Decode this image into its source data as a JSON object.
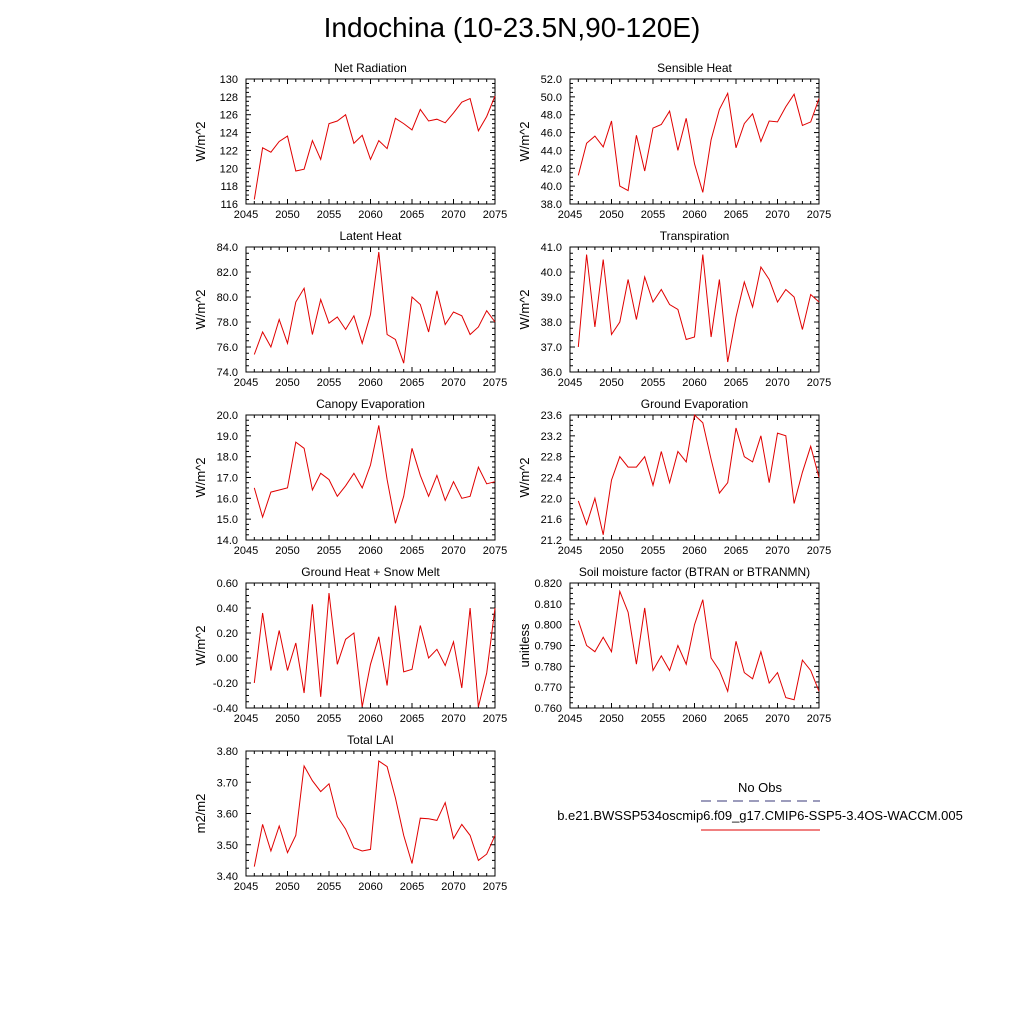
{
  "title": "Indochina (10-23.5N,90-120E)",
  "legend": {
    "obs_label": "No Obs",
    "model_label": "b.e21.BWSSP534oscmip6.f09_g17.CMIP6-SSP5-3.4OS-WACCM.005",
    "obs_color": "#3a3a7a",
    "model_color": "#e00000"
  },
  "series_color": "#e00000",
  "chart_data": [
    {
      "type": "line",
      "title": "Net Radiation",
      "ylabel": "W/m^2",
      "xlim": [
        2045,
        2075
      ],
      "ylim": [
        116,
        130
      ],
      "xticks": [
        2045,
        2050,
        2055,
        2060,
        2065,
        2070,
        2075
      ],
      "xtick_labels": [
        "2045",
        "2050",
        "2055",
        "2060",
        "2065",
        "2070",
        "2075"
      ],
      "yticks": [
        116,
        118,
        120,
        122,
        124,
        126,
        128,
        130
      ],
      "ytick_labels": [
        "116",
        "118",
        "120",
        "122",
        "124",
        "126",
        "128",
        "130"
      ],
      "x": [
        2046,
        2047,
        2048,
        2049,
        2050,
        2051,
        2052,
        2053,
        2054,
        2055,
        2056,
        2057,
        2058,
        2059,
        2060,
        2061,
        2062,
        2063,
        2064,
        2065,
        2066,
        2067,
        2068,
        2069,
        2070,
        2071,
        2072,
        2073,
        2074,
        2075
      ],
      "values": [
        116.5,
        122.3,
        121.8,
        123.0,
        123.6,
        119.7,
        119.9,
        123.1,
        121.0,
        125.0,
        125.3,
        126.0,
        122.8,
        123.7,
        121.0,
        123.1,
        122.2,
        125.6,
        125.0,
        124.3,
        126.6,
        125.3,
        125.5,
        125.1,
        126.2,
        127.4,
        127.8,
        124.2,
        125.8,
        128.1
      ]
    },
    {
      "type": "line",
      "title": "Sensible Heat",
      "ylabel": "W/m^2",
      "xlim": [
        2045,
        2075
      ],
      "ylim": [
        38,
        52
      ],
      "xticks": [
        2045,
        2050,
        2055,
        2060,
        2065,
        2070,
        2075
      ],
      "xtick_labels": [
        "2045",
        "2050",
        "2055",
        "2060",
        "2065",
        "2070",
        "2075"
      ],
      "yticks": [
        38,
        40,
        42,
        44,
        46,
        48,
        50,
        52
      ],
      "ytick_labels": [
        "38.0",
        "40.0",
        "42.0",
        "44.0",
        "46.0",
        "48.0",
        "50.0",
        "52.0"
      ],
      "x": [
        2046,
        2047,
        2048,
        2049,
        2050,
        2051,
        2052,
        2053,
        2054,
        2055,
        2056,
        2057,
        2058,
        2059,
        2060,
        2061,
        2062,
        2063,
        2064,
        2065,
        2066,
        2067,
        2068,
        2069,
        2070,
        2071,
        2072,
        2073,
        2074,
        2075
      ],
      "values": [
        41.2,
        44.8,
        45.6,
        44.4,
        47.3,
        40.0,
        39.5,
        45.7,
        41.7,
        46.5,
        46.9,
        48.4,
        44.0,
        47.6,
        42.5,
        39.3,
        45.2,
        48.6,
        50.4,
        44.3,
        47.0,
        48.1,
        45.0,
        47.3,
        47.2,
        48.9,
        50.3,
        46.8,
        47.2,
        49.8
      ]
    },
    {
      "type": "line",
      "title": "Latent Heat",
      "ylabel": "W/m^2",
      "xlim": [
        2045,
        2075
      ],
      "ylim": [
        74,
        84
      ],
      "xticks": [
        2045,
        2050,
        2055,
        2060,
        2065,
        2070,
        2075
      ],
      "xtick_labels": [
        "2045",
        "2050",
        "2055",
        "2060",
        "2065",
        "2070",
        "2075"
      ],
      "yticks": [
        74,
        76,
        78,
        80,
        82,
        84
      ],
      "ytick_labels": [
        "74.0",
        "76.0",
        "78.0",
        "80.0",
        "82.0",
        "84.0"
      ],
      "x": [
        2046,
        2047,
        2048,
        2049,
        2050,
        2051,
        2052,
        2053,
        2054,
        2055,
        2056,
        2057,
        2058,
        2059,
        2060,
        2061,
        2062,
        2063,
        2064,
        2065,
        2066,
        2067,
        2068,
        2069,
        2070,
        2071,
        2072,
        2073,
        2074,
        2075
      ],
      "values": [
        75.4,
        77.2,
        76.0,
        78.2,
        76.3,
        79.6,
        80.7,
        77.0,
        79.8,
        77.9,
        78.4,
        77.4,
        78.5,
        76.3,
        78.6,
        83.6,
        77.0,
        76.6,
        74.7,
        80.0,
        79.4,
        77.2,
        80.5,
        77.8,
        78.8,
        78.5,
        77.0,
        77.6,
        78.9,
        78.0
      ]
    },
    {
      "type": "line",
      "title": "Transpiration",
      "ylabel": "W/m^2",
      "xlim": [
        2045,
        2075
      ],
      "ylim": [
        36,
        41
      ],
      "xticks": [
        2045,
        2050,
        2055,
        2060,
        2065,
        2070,
        2075
      ],
      "xtick_labels": [
        "2045",
        "2050",
        "2055",
        "2060",
        "2065",
        "2070",
        "2075"
      ],
      "yticks": [
        36,
        37,
        38,
        39,
        40,
        41
      ],
      "ytick_labels": [
        "36.0",
        "37.0",
        "38.0",
        "39.0",
        "40.0",
        "41.0"
      ],
      "x": [
        2046,
        2047,
        2048,
        2049,
        2050,
        2051,
        2052,
        2053,
        2054,
        2055,
        2056,
        2057,
        2058,
        2059,
        2060,
        2061,
        2062,
        2063,
        2064,
        2065,
        2066,
        2067,
        2068,
        2069,
        2070,
        2071,
        2072,
        2073,
        2074,
        2075
      ],
      "values": [
        37.0,
        40.7,
        37.8,
        40.5,
        37.5,
        38.0,
        39.7,
        38.1,
        39.8,
        38.8,
        39.3,
        38.7,
        38.5,
        37.3,
        37.4,
        40.7,
        37.4,
        39.7,
        36.4,
        38.2,
        39.6,
        38.6,
        40.2,
        39.7,
        38.8,
        39.3,
        39.0,
        37.7,
        39.1,
        38.8
      ]
    },
    {
      "type": "line",
      "title": "Canopy Evaporation",
      "ylabel": "W/m^2",
      "xlim": [
        2045,
        2075
      ],
      "ylim": [
        14,
        20
      ],
      "xticks": [
        2045,
        2050,
        2055,
        2060,
        2065,
        2070,
        2075
      ],
      "xtick_labels": [
        "2045",
        "2050",
        "2055",
        "2060",
        "2065",
        "2070",
        "2075"
      ],
      "yticks": [
        14,
        15,
        16,
        17,
        18,
        19,
        20
      ],
      "ytick_labels": [
        "14.0",
        "15.0",
        "16.0",
        "17.0",
        "18.0",
        "19.0",
        "20.0"
      ],
      "x": [
        2046,
        2047,
        2048,
        2049,
        2050,
        2051,
        2052,
        2053,
        2054,
        2055,
        2056,
        2057,
        2058,
        2059,
        2060,
        2061,
        2062,
        2063,
        2064,
        2065,
        2066,
        2067,
        2068,
        2069,
        2070,
        2071,
        2072,
        2073,
        2074,
        2075
      ],
      "values": [
        16.5,
        15.1,
        16.3,
        16.4,
        16.5,
        18.7,
        18.4,
        16.4,
        17.2,
        16.9,
        16.1,
        16.6,
        17.2,
        16.5,
        17.6,
        19.5,
        16.9,
        14.8,
        16.1,
        18.4,
        17.1,
        16.1,
        17.1,
        15.9,
        16.8,
        16.0,
        16.1,
        17.5,
        16.7,
        16.8
      ]
    },
    {
      "type": "line",
      "title": "Ground Evaporation",
      "ylabel": "W/m^2",
      "xlim": [
        2045,
        2075
      ],
      "ylim": [
        21.2,
        23.6
      ],
      "xticks": [
        2045,
        2050,
        2055,
        2060,
        2065,
        2070,
        2075
      ],
      "xtick_labels": [
        "2045",
        "2050",
        "2055",
        "2060",
        "2065",
        "2070",
        "2075"
      ],
      "yticks": [
        21.2,
        21.6,
        22.0,
        22.4,
        22.8,
        23.2,
        23.6
      ],
      "ytick_labels": [
        "21.2",
        "21.6",
        "22.0",
        "22.4",
        "22.8",
        "23.2",
        "23.6"
      ],
      "x": [
        2046,
        2047,
        2048,
        2049,
        2050,
        2051,
        2052,
        2053,
        2054,
        2055,
        2056,
        2057,
        2058,
        2059,
        2060,
        2061,
        2062,
        2063,
        2064,
        2065,
        2066,
        2067,
        2068,
        2069,
        2070,
        2071,
        2072,
        2073,
        2074,
        2075
      ],
      "values": [
        21.95,
        21.5,
        22.0,
        21.3,
        22.35,
        22.8,
        22.6,
        22.6,
        22.8,
        22.25,
        22.9,
        22.3,
        22.9,
        22.7,
        23.6,
        23.45,
        22.75,
        22.1,
        22.3,
        23.35,
        22.8,
        22.7,
        23.2,
        22.3,
        23.25,
        23.2,
        21.9,
        22.5,
        23.0,
        22.4
      ]
    },
    {
      "type": "line",
      "title": "Ground Heat + Snow Melt",
      "ylabel": "W/m^2",
      "xlim": [
        2045,
        2075
      ],
      "ylim": [
        -0.4,
        0.6
      ],
      "xticks": [
        2045,
        2050,
        2055,
        2060,
        2065,
        2070,
        2075
      ],
      "xtick_labels": [
        "2045",
        "2050",
        "2055",
        "2060",
        "2065",
        "2070",
        "2075"
      ],
      "yticks": [
        -0.4,
        -0.2,
        0.0,
        0.2,
        0.4,
        0.6
      ],
      "ytick_labels": [
        "-0.40",
        "-0.20",
        "0.00",
        "0.20",
        "0.40",
        "0.60"
      ],
      "x": [
        2046,
        2047,
        2048,
        2049,
        2050,
        2051,
        2052,
        2053,
        2054,
        2055,
        2056,
        2057,
        2058,
        2059,
        2060,
        2061,
        2062,
        2063,
        2064,
        2065,
        2066,
        2067,
        2068,
        2069,
        2070,
        2071,
        2072,
        2073,
        2074,
        2075
      ],
      "values": [
        -0.2,
        0.36,
        -0.1,
        0.22,
        -0.1,
        0.12,
        -0.28,
        0.43,
        -0.31,
        0.52,
        -0.05,
        0.15,
        0.2,
        -0.39,
        -0.05,
        0.17,
        -0.22,
        0.42,
        -0.11,
        -0.09,
        0.26,
        0.0,
        0.07,
        -0.06,
        0.13,
        -0.24,
        0.4,
        -0.39,
        -0.12,
        0.4
      ]
    },
    {
      "type": "line",
      "title": "Soil moisture factor (BTRAN or BTRANMN)",
      "ylabel": "unitless",
      "xlim": [
        2045,
        2075
      ],
      "ylim": [
        0.76,
        0.82
      ],
      "xticks": [
        2045,
        2050,
        2055,
        2060,
        2065,
        2070,
        2075
      ],
      "xtick_labels": [
        "2045",
        "2050",
        "2055",
        "2060",
        "2065",
        "2070",
        "2075"
      ],
      "yticks": [
        0.76,
        0.77,
        0.78,
        0.79,
        0.8,
        0.81,
        0.82
      ],
      "ytick_labels": [
        "0.760",
        "0.770",
        "0.780",
        "0.790",
        "0.800",
        "0.810",
        "0.820"
      ],
      "x": [
        2046,
        2047,
        2048,
        2049,
        2050,
        2051,
        2052,
        2053,
        2054,
        2055,
        2056,
        2057,
        2058,
        2059,
        2060,
        2061,
        2062,
        2063,
        2064,
        2065,
        2066,
        2067,
        2068,
        2069,
        2070,
        2071,
        2072,
        2073,
        2074,
        2075
      ],
      "values": [
        0.802,
        0.79,
        0.787,
        0.794,
        0.787,
        0.816,
        0.806,
        0.781,
        0.808,
        0.778,
        0.785,
        0.778,
        0.79,
        0.781,
        0.8,
        0.812,
        0.784,
        0.778,
        0.768,
        0.792,
        0.777,
        0.774,
        0.787,
        0.772,
        0.777,
        0.765,
        0.764,
        0.783,
        0.778,
        0.768
      ]
    },
    {
      "type": "line",
      "title": "Total LAI",
      "ylabel": "m2/m2",
      "xlim": [
        2045,
        2075
      ],
      "ylim": [
        3.4,
        3.8
      ],
      "xticks": [
        2045,
        2050,
        2055,
        2060,
        2065,
        2070,
        2075
      ],
      "xtick_labels": [
        "2045",
        "2050",
        "2055",
        "2060",
        "2065",
        "2070",
        "2075"
      ],
      "yticks": [
        3.4,
        3.5,
        3.6,
        3.7,
        3.8
      ],
      "ytick_labels": [
        "3.40",
        "3.50",
        "3.60",
        "3.70",
        "3.80"
      ],
      "x": [
        2046,
        2047,
        2048,
        2049,
        2050,
        2051,
        2052,
        2053,
        2054,
        2055,
        2056,
        2057,
        2058,
        2059,
        2060,
        2061,
        2062,
        2063,
        2064,
        2065,
        2066,
        2067,
        2068,
        2069,
        2070,
        2071,
        2072,
        2073,
        2074,
        2075
      ],
      "values": [
        3.43,
        3.565,
        3.48,
        3.56,
        3.475,
        3.53,
        3.752,
        3.705,
        3.67,
        3.695,
        3.59,
        3.55,
        3.49,
        3.48,
        3.485,
        3.768,
        3.75,
        3.65,
        3.53,
        3.44,
        3.585,
        3.583,
        3.578,
        3.635,
        3.52,
        3.565,
        3.53,
        3.45,
        3.47,
        3.53
      ]
    }
  ]
}
